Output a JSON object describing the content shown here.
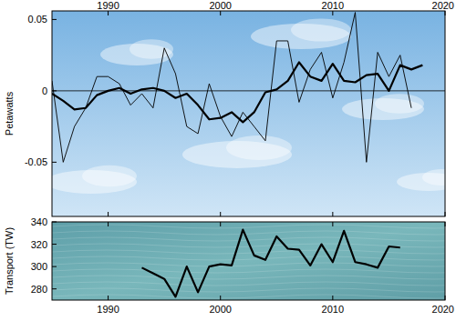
{
  "chart_data": [
    {
      "type": "line",
      "y_label": "Petawatts",
      "x": [
        1985,
        1986,
        1987,
        1988,
        1989,
        1990,
        1991,
        1992,
        1993,
        1994,
        1995,
        1996,
        1997,
        1998,
        1999,
        2000,
        2001,
        2002,
        2003,
        2004,
        2005,
        2006,
        2007,
        2008,
        2009,
        2010,
        2011,
        2012,
        2013,
        2014,
        2015,
        2016,
        2017,
        2018
      ],
      "series": [
        {
          "color": "#000000",
          "line_style": "thin",
          "values": [
            0.007,
            -0.05,
            -0.025,
            -0.012,
            0.01,
            0.01,
            0.005,
            -0.01,
            -0.002,
            -0.012,
            0.03,
            0.012,
            -0.025,
            -0.03,
            0.005,
            -0.018,
            -0.032,
            -0.015,
            -0.025,
            -0.035,
            0.035,
            0.035,
            -0.008,
            0.015,
            0.027,
            -0.005,
            0.02,
            0.055,
            -0.05,
            0.027,
            0.01,
            0.025,
            -0.012,
            null
          ]
        },
        {
          "color": "#000000",
          "line_style": "thick",
          "values": [
            -0.002,
            -0.007,
            -0.013,
            -0.012,
            -0.003,
            0.0,
            0.002,
            -0.002,
            0.001,
            0.002,
            0.0,
            -0.005,
            -0.002,
            -0.01,
            -0.02,
            -0.019,
            -0.015,
            -0.022,
            -0.015,
            -0.001,
            0.001,
            0.007,
            0.02,
            0.01,
            0.007,
            0.019,
            0.007,
            0.006,
            0.011,
            0.012,
            0.0,
            0.018,
            0.015,
            0.018
          ]
        }
      ],
      "xlim": [
        1985,
        2020
      ],
      "xticks": [
        1990,
        2000,
        2010,
        2020
      ],
      "ylim": [
        -0.088,
        0.056
      ],
      "yticks": [
        -0.05,
        0,
        0.05
      ],
      "grid": false
    },
    {
      "type": "line",
      "y_label": "Transport (TW)",
      "x": [
        1993,
        1994,
        1995,
        1996,
        1997,
        1998,
        1999,
        2000,
        2001,
        2002,
        2003,
        2004,
        2005,
        2006,
        2007,
        2008,
        2009,
        2010,
        2011,
        2012,
        2013,
        2014,
        2015,
        2016
      ],
      "series": [
        {
          "color": "#000000",
          "line_style": "thick",
          "values": [
            299,
            294,
            289,
            273,
            300,
            277,
            300,
            302,
            301,
            333,
            310,
            306,
            327,
            316,
            315,
            301,
            320,
            304,
            332,
            304,
            302,
            299,
            318,
            317
          ]
        }
      ],
      "xlim": [
        1985,
        2020
      ],
      "xticks": [
        1990,
        2000,
        2010,
        2020
      ],
      "ylim": [
        270,
        340
      ],
      "yticks": [
        280,
        300,
        320,
        340
      ],
      "grid": false
    }
  ]
}
